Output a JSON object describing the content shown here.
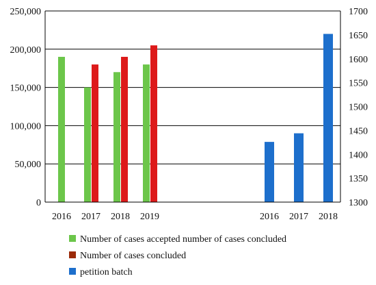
{
  "chart_data": {
    "type": "bar",
    "title": "",
    "grid": true,
    "legend_position": "bottom",
    "left_axis": {
      "ylim": [
        0,
        250000
      ],
      "ticks": [
        0,
        50000,
        100000,
        150000,
        200000,
        250000
      ],
      "tick_labels": [
        "0",
        "50,000",
        "100,000",
        "150,000",
        "200,000",
        "250,000"
      ]
    },
    "right_axis": {
      "ylim": [
        1300,
        1700
      ],
      "ticks": [
        1300,
        1350,
        1400,
        1450,
        1500,
        1550,
        1600,
        1650,
        1700
      ],
      "tick_labels": [
        "1300",
        "1350",
        "1400",
        "1450",
        "1500",
        "1550",
        "1600",
        "1650",
        "1700"
      ]
    },
    "group_left": {
      "categories": [
        "2016",
        "2017",
        "2018",
        "2019"
      ],
      "series": [
        {
          "name": "Number of cases accepted number of cases concluded",
          "color": "#6cc64a",
          "values": [
            190000,
            150000,
            170000,
            180000
          ]
        },
        {
          "name": "Number of cases concluded",
          "color": "#dd1a1a",
          "values": [
            null,
            180000,
            190000,
            205000
          ]
        }
      ]
    },
    "group_right": {
      "categories": [
        "2016",
        "2017",
        "2018"
      ],
      "series": [
        {
          "name": "petition batch",
          "color": "#1d6fcc",
          "values": [
            1426,
            1444,
            1652
          ]
        }
      ]
    },
    "legend": [
      {
        "label": "Number of cases accepted number of cases concluded",
        "color": "#6cc64a"
      },
      {
        "label": "Number of cases concluded",
        "color": "#9b2a08"
      },
      {
        "label": "petition batch",
        "color": "#1d6fcc"
      }
    ]
  }
}
